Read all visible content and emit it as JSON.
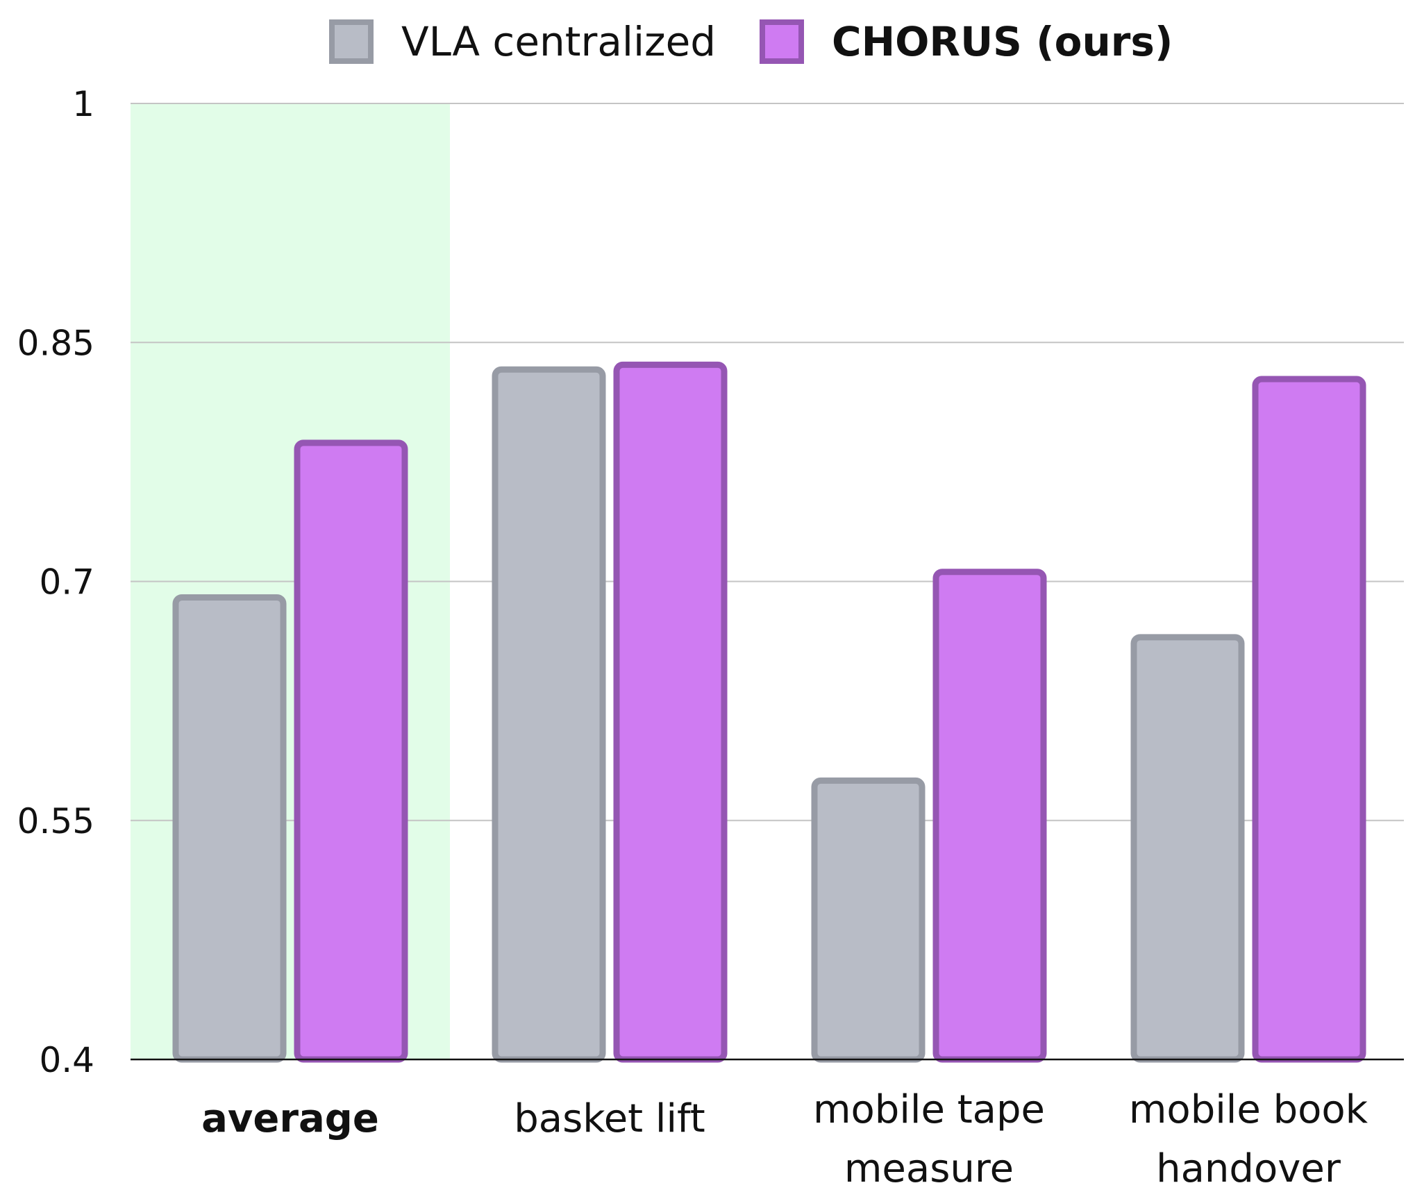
{
  "chart_data": {
    "type": "bar",
    "categories": [
      [
        "average"
      ],
      [
        "basket lift"
      ],
      [
        "mobile tape",
        "measure"
      ],
      [
        "mobile book",
        "handover"
      ]
    ],
    "highlight_category": 0,
    "series": [
      {
        "name": "VLA centralized",
        "values": [
          0.69,
          0.833,
          0.575,
          0.665
        ],
        "color": "#b8bcc6",
        "stroke": "#979ba5"
      },
      {
        "name": "CHORUS (ours)",
        "values": [
          0.787,
          0.836,
          0.706,
          0.827
        ],
        "color": "#cf7bf2",
        "stroke": "#9556b3"
      }
    ],
    "yticks": [
      "1",
      "0.85",
      "0.7",
      "0.55",
      "0.4"
    ],
    "ylim": [
      0.4,
      1.0
    ],
    "highlight_color": "#e2fde8",
    "legend_position": "top-center",
    "grid": true
  }
}
